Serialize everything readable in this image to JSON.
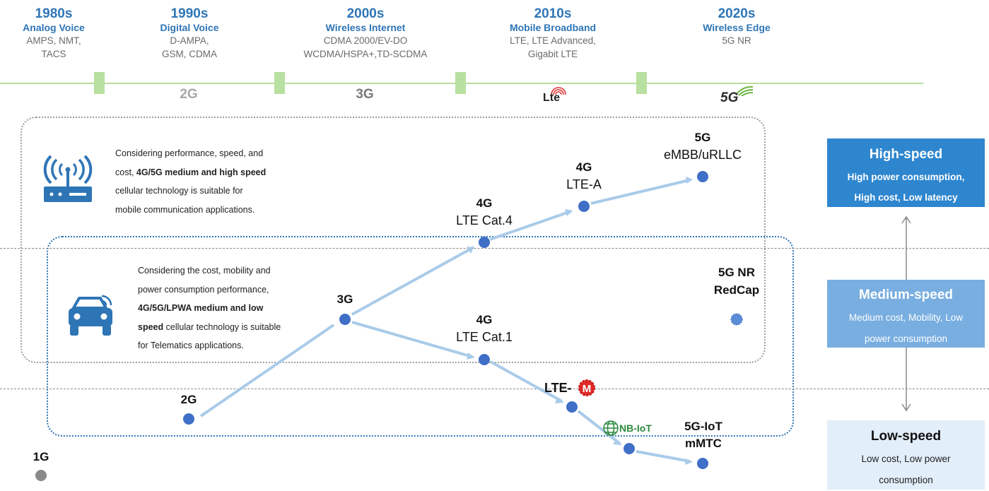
{
  "eras": [
    {
      "year": "1980s",
      "name": "Analog Voice",
      "tech": [
        "AMPS, NMT,",
        "TACS"
      ]
    },
    {
      "year": "1990s",
      "name": "Digital Voice",
      "tech": [
        "D-AMPA,",
        "GSM, CDMA"
      ]
    },
    {
      "year": "2000s",
      "name": "Wireless Internet",
      "tech": [
        "CDMA 2000/EV-DO",
        "WCDMA/HSPA+,TD-SCDMA"
      ]
    },
    {
      "year": "2010s",
      "name": "Mobile Broadband",
      "tech": [
        "LTE, LTE Advanced,",
        "Gigabit LTE"
      ]
    },
    {
      "year": "2020s",
      "name": "Wireless Edge",
      "tech": [
        "5G NR"
      ]
    }
  ],
  "timeline_logos": {
    "g2": "2G",
    "g3": "3G",
    "lte": "Lte",
    "g5": "5G"
  },
  "descriptions": {
    "router": {
      "l1": "Considering performance, speed, and",
      "l2a": "cost, ",
      "l2b": "4G/5G medium and high speed",
      "l3": "cellular technology is suitable for",
      "l4": "mobile communication applications."
    },
    "car": {
      "l1": "Considering the cost, mobility and",
      "l2": "power consumption performance,",
      "l3": "4G/5G/LPWA medium and low",
      "l4a": "speed",
      "l4b": " cellular technology is suitable",
      "l5": "for Telematics applications."
    }
  },
  "nodes": {
    "g5_embb": {
      "gen": "5G",
      "name": "eMBB/uRLLC"
    },
    "g4_ltea": {
      "gen": "4G",
      "name": "LTE-A"
    },
    "g4_cat4": {
      "gen": "4G",
      "name": "LTE Cat.4"
    },
    "g5_redcap": {
      "gen": "5G NR",
      "name": "RedCap"
    },
    "g3": {
      "gen": "3G"
    },
    "g4_cat1": {
      "gen": "4G",
      "name": "LTE Cat.1"
    },
    "lte_m": {
      "name": "LTE-"
    },
    "nb_iot": {
      "name": "NB-IoT"
    },
    "g5_iot": {
      "gen": "5G-IoT",
      "name": "mMTC"
    },
    "g2": {
      "gen": "2G"
    },
    "g1": {
      "gen": "1G"
    }
  },
  "panels": {
    "high": {
      "title": "High-speed",
      "l1": "High power consumption,",
      "l2": "High cost, Low latency"
    },
    "medium": {
      "title": "Medium-speed",
      "l1": "Medium cost, Mobility, Low",
      "l2": "power consumption"
    },
    "low": {
      "title": "Low-speed",
      "l1": "Low cost, Low power",
      "l2": "consumption"
    }
  },
  "colors": {
    "accent": "#2e75b6",
    "node": "#3f6fc7",
    "link": "#a9cbe9",
    "timeline": "#b7dd9a"
  }
}
